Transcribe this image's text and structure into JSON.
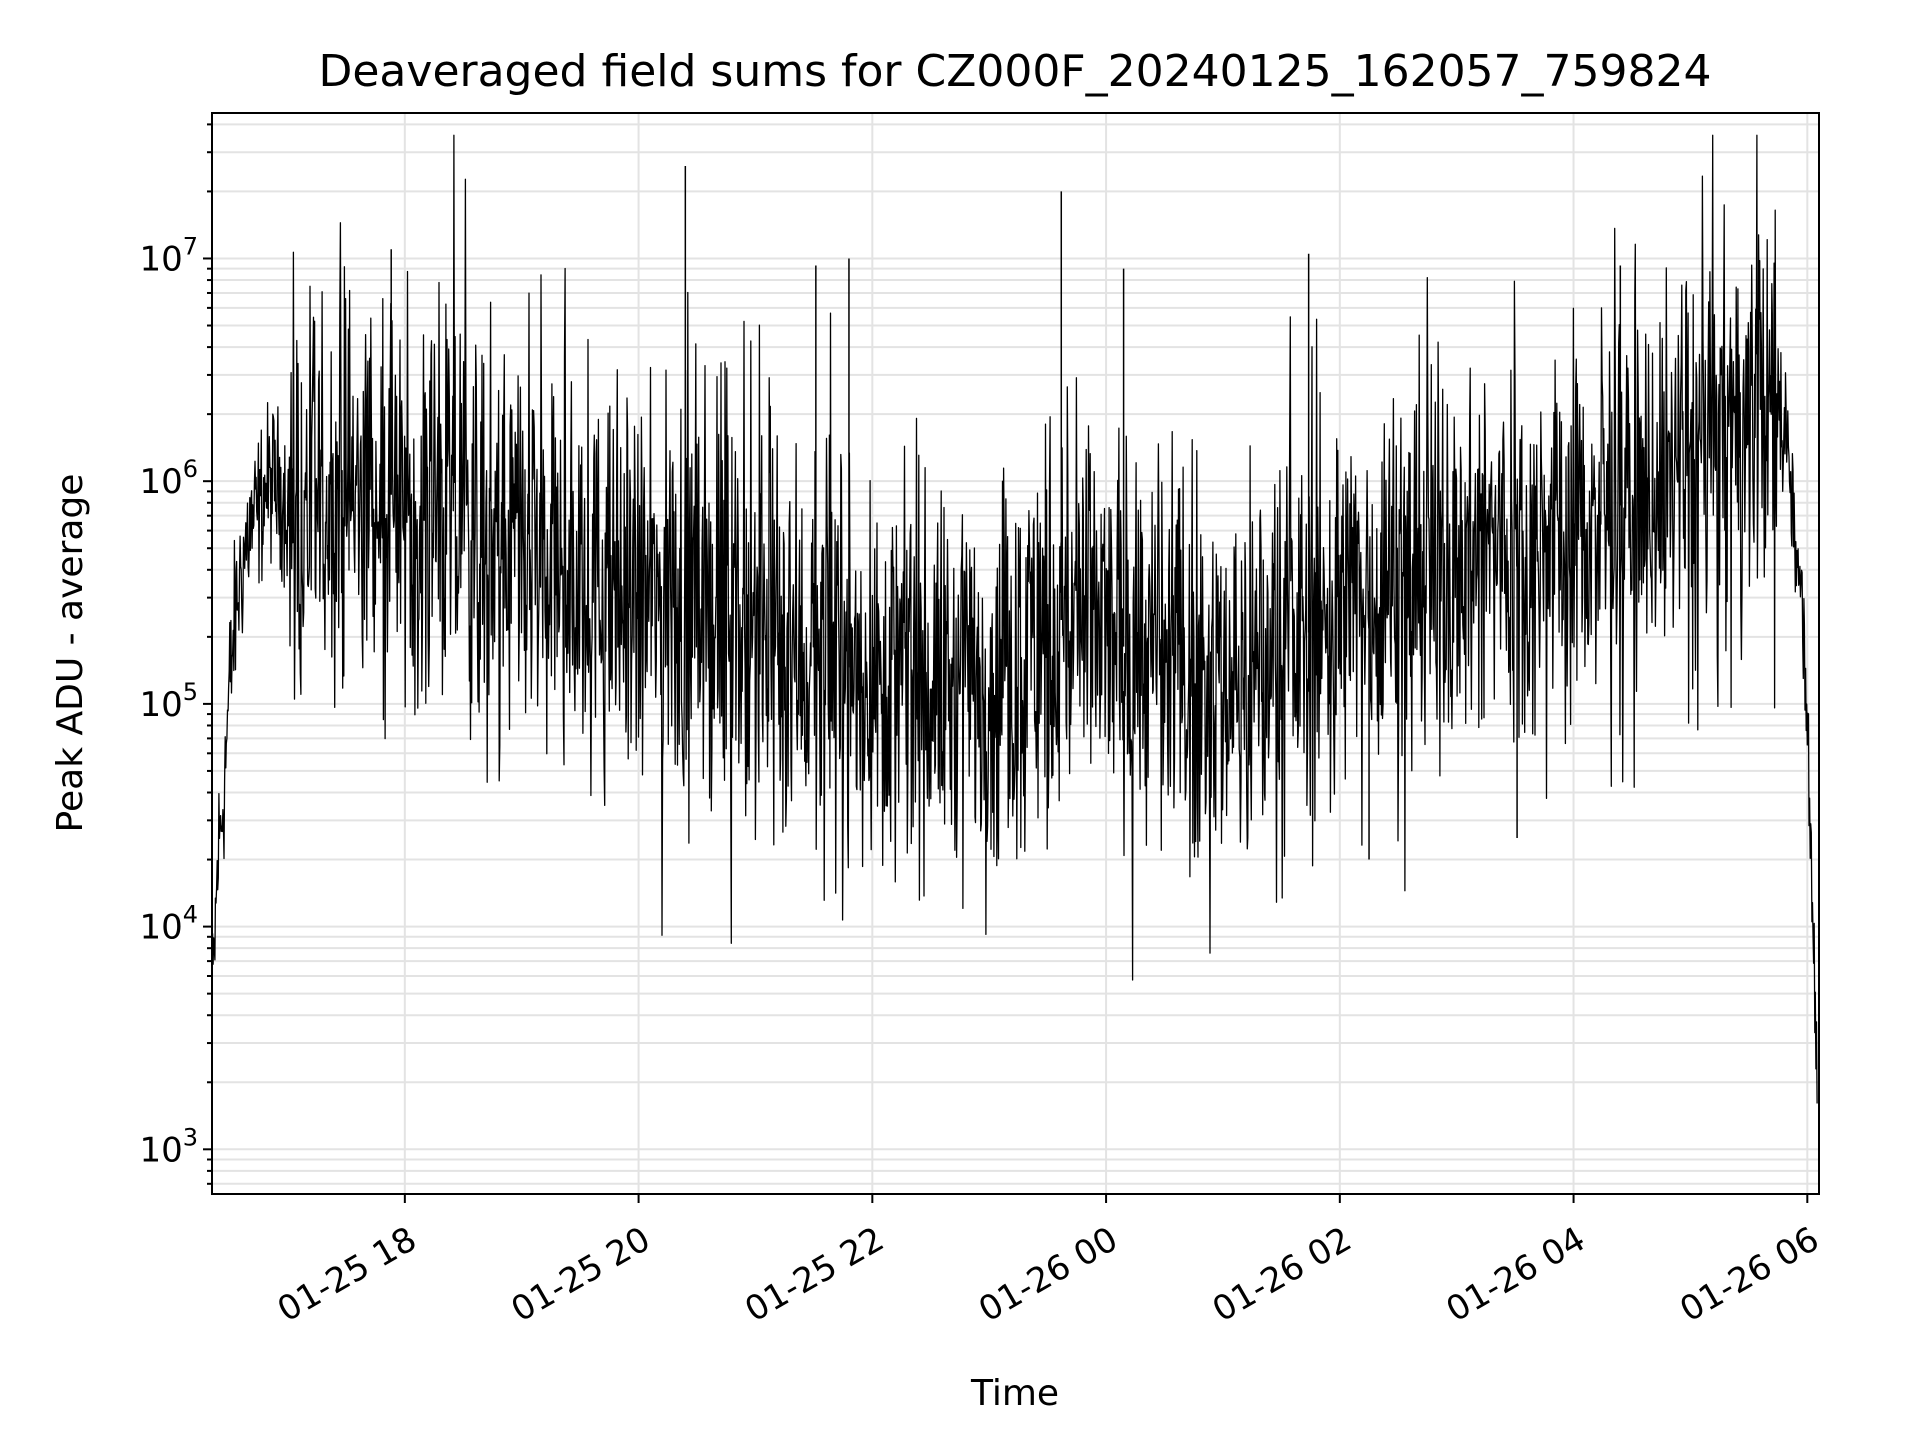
{
  "chart_data": {
    "type": "line",
    "title": "Deaveraged field sums for CZ000F_20240125_162057_759824",
    "xlabel": "Time",
    "ylabel": "Peak ADU - average",
    "xlim": [
      "2024-01-25 16:21",
      "2024-01-26 06:06"
    ],
    "ylim": [
      630,
      45000000
    ],
    "yscale": "log",
    "grid": true,
    "legend": "none",
    "x_ticks": [
      {
        "t": "2024-01-25 18:00",
        "label": "01-25 18"
      },
      {
        "t": "2024-01-25 20:00",
        "label": "01-25 20"
      },
      {
        "t": "2024-01-25 22:00",
        "label": "01-25 22"
      },
      {
        "t": "2024-01-26 00:00",
        "label": "01-26 00"
      },
      {
        "t": "2024-01-26 02:00",
        "label": "01-26 02"
      },
      {
        "t": "2024-01-26 04:00",
        "label": "01-26 04"
      },
      {
        "t": "2024-01-26 06:00",
        "label": "01-26 06"
      }
    ],
    "y_ticks": [
      {
        "value": 1000,
        "base": "10",
        "exp": "3"
      },
      {
        "value": 10000,
        "base": "10",
        "exp": "4"
      },
      {
        "value": 100000,
        "base": "10",
        "exp": "5"
      },
      {
        "value": 1000000,
        "base": "10",
        "exp": "6"
      },
      {
        "value": 10000000,
        "base": "10",
        "exp": "7"
      }
    ],
    "series": [
      {
        "color": "#000000",
        "x": [
          "2024-01-25 16:21",
          "2024-01-25 16:24",
          "2024-01-25 16:27",
          "2024-01-25 16:30",
          "2024-01-25 16:33",
          "2024-01-25 16:36",
          "2024-01-25 16:40",
          "2024-01-25 16:44",
          "2024-01-25 16:48",
          "2024-01-25 16:52",
          "2024-01-25 16:56",
          "2024-01-25 17:00",
          "2024-01-25 17:10",
          "2024-01-25 17:20",
          "2024-01-25 17:30",
          "2024-01-25 17:40",
          "2024-01-25 17:50",
          "2024-01-25 18:00",
          "2024-01-25 18:15",
          "2024-01-25 18:30",
          "2024-01-25 18:45",
          "2024-01-25 19:00",
          "2024-01-25 19:15",
          "2024-01-25 19:30",
          "2024-01-25 19:45",
          "2024-01-25 20:00",
          "2024-01-25 20:20",
          "2024-01-25 20:40",
          "2024-01-25 21:00",
          "2024-01-25 21:20",
          "2024-01-25 21:40",
          "2024-01-25 22:00",
          "2024-01-25 22:20",
          "2024-01-25 22:40",
          "2024-01-25 23:00",
          "2024-01-25 23:20",
          "2024-01-25 23:40",
          "2024-01-26 00:00",
          "2024-01-26 00:20",
          "2024-01-26 00:40",
          "2024-01-26 01:00",
          "2024-01-26 01:20",
          "2024-01-26 01:40",
          "2024-01-26 02:00",
          "2024-01-26 02:20",
          "2024-01-26 02:40",
          "2024-01-26 03:00",
          "2024-01-26 03:20",
          "2024-01-26 03:40",
          "2024-01-26 04:00",
          "2024-01-26 04:20",
          "2024-01-26 04:40",
          "2024-01-26 05:00",
          "2024-01-26 05:20",
          "2024-01-26 05:35",
          "2024-01-26 05:45",
          "2024-01-26 05:50",
          "2024-01-26 05:54",
          "2024-01-26 05:58",
          "2024-01-26 06:01",
          "2024-01-26 06:03",
          "2024-01-26 06:05"
        ],
        "y": [
          4000,
          20000,
          40000,
          120000,
          250000,
          400000,
          600000,
          700000,
          900000,
          1000000,
          900000,
          800000,
          700000,
          800000,
          900000,
          1000000,
          900000,
          800000,
          700000,
          600000,
          500000,
          450000,
          400000,
          350000,
          300000,
          280000,
          300000,
          260000,
          200000,
          170000,
          150000,
          140000,
          130000,
          120000,
          120000,
          180000,
          250000,
          200000,
          160000,
          140000,
          130000,
          140000,
          200000,
          250000,
          350000,
          400000,
          450000,
          500000,
          550000,
          600000,
          750000,
          900000,
          1200000,
          1600000,
          2000000,
          2200000,
          1500000,
          600000,
          200000,
          60000,
          10000,
          1500
        ],
        "spikes": [
          {
            "x": "2024-01-25 17:53",
            "y": 11000000
          },
          {
            "x": "2024-01-25 20:24",
            "y": 26000000
          },
          {
            "x": "2024-01-25 21:31",
            "y": 9300000
          },
          {
            "x": "2024-01-25 21:48",
            "y": 10000000
          },
          {
            "x": "2024-01-25 23:37",
            "y": 20000000
          },
          {
            "x": "2024-01-26 00:09",
            "y": 9000000
          },
          {
            "x": "2024-01-26 01:44",
            "y": 10500000
          },
          {
            "x": "2024-01-26 04:24",
            "y": 9300000
          },
          {
            "x": "2024-01-26 02:15",
            "y": 20000
          },
          {
            "x": "2024-01-26 03:31",
            "y": 25000
          }
        ]
      }
    ]
  }
}
